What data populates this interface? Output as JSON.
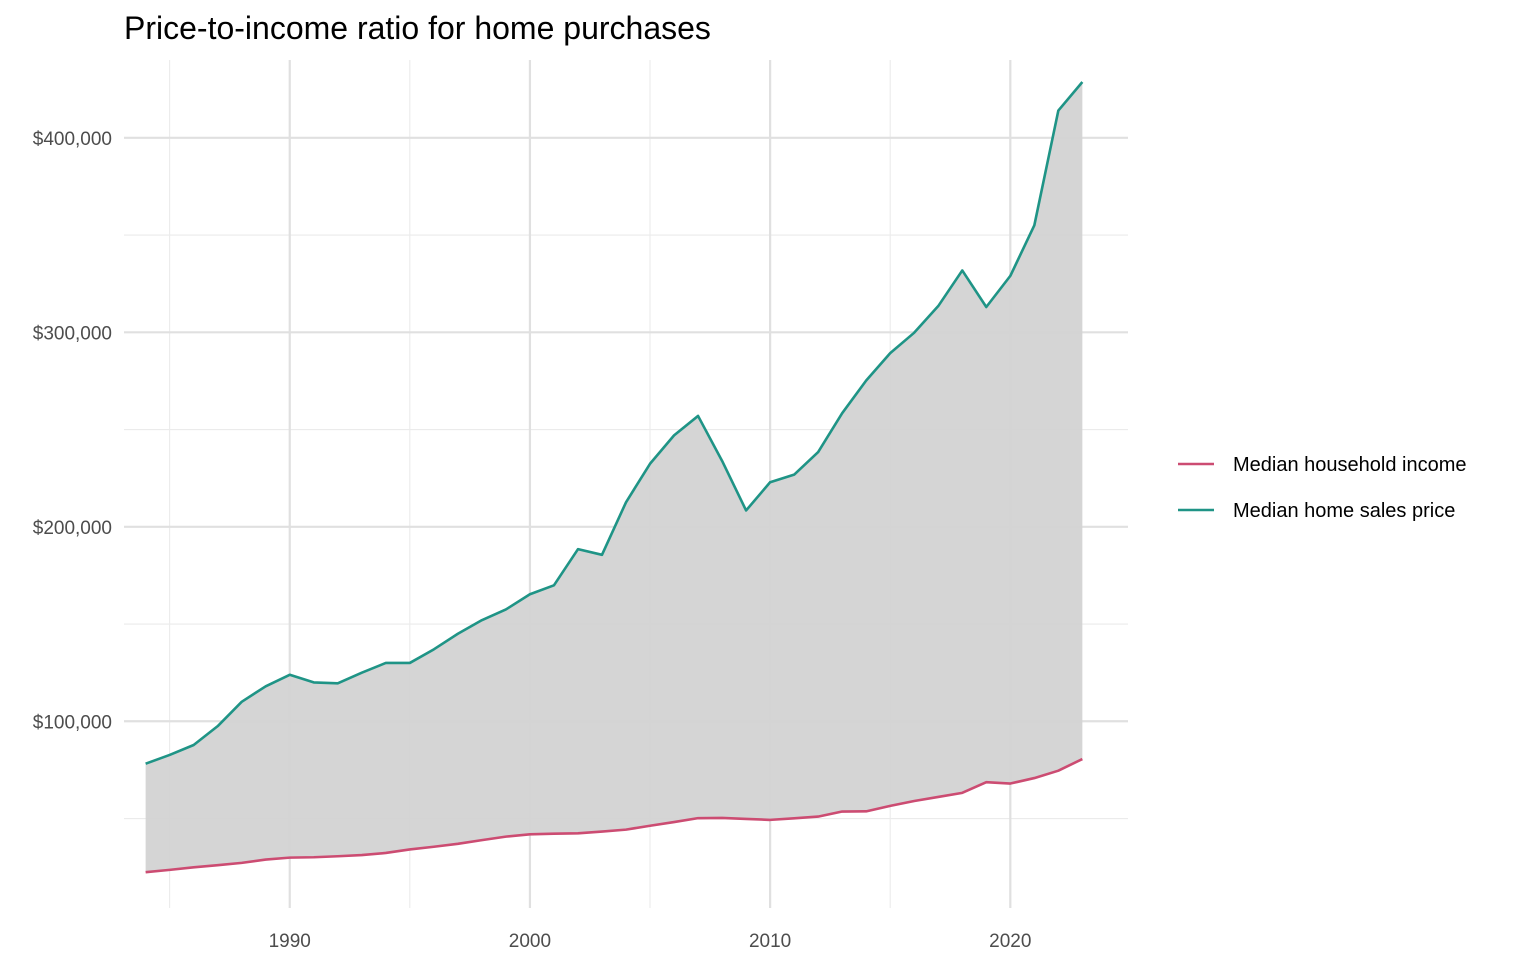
{
  "chart_data": {
    "type": "line",
    "title": "Price-to-income ratio for home purchases",
    "xlabel": "",
    "ylabel": "",
    "x_ticks": [
      1990,
      2000,
      2010,
      2020
    ],
    "y_ticks": [
      "$100,000",
      "$200,000",
      "$300,000",
      "$400,000"
    ],
    "y_tick_values": [
      100000,
      200000,
      300000,
      400000
    ],
    "xlim": [
      1983.1,
      2024.9
    ],
    "ylim": [
      4000,
      440000
    ],
    "grid": true,
    "legend_position": "right",
    "ribbon_between_series": true,
    "ribbon_color": "#d3d3d3",
    "x": [
      1984,
      1985,
      1986,
      1987,
      1988,
      1989,
      1990,
      1991,
      1992,
      1993,
      1994,
      1995,
      1996,
      1997,
      1998,
      1999,
      2000,
      2001,
      2002,
      2003,
      2004,
      2005,
      2006,
      2007,
      2008,
      2009,
      2010,
      2011,
      2012,
      2013,
      2014,
      2015,
      2016,
      2017,
      2018,
      2019,
      2020,
      2021,
      2022,
      2023
    ],
    "series": [
      {
        "name": "Median household income",
        "color": "#cc4c72",
        "values": [
          22400,
          23600,
          24900,
          26000,
          27200,
          28900,
          29900,
          30100,
          30600,
          31200,
          32300,
          34100,
          35500,
          37000,
          38900,
          40700,
          41900,
          42200,
          42400,
          43300,
          44300,
          46300,
          48200,
          50200,
          50300,
          49800,
          49300,
          50100,
          51000,
          53600,
          53700,
          56500,
          59000,
          61100,
          63200,
          68700,
          68000,
          70800,
          74600,
          80600
        ]
      },
      {
        "name": "Median home sales price",
        "color": "#1f9486",
        "values": [
          78200,
          82700,
          87800,
          97500,
          110000,
          118000,
          123900,
          120000,
          119500,
          125000,
          130000,
          130000,
          137000,
          145000,
          152000,
          157500,
          165300,
          169900,
          188500,
          185600,
          212600,
          232400,
          247000,
          257000,
          233900,
          208400,
          222900,
          226800,
          238400,
          258400,
          275200,
          289300,
          299800,
          313500,
          331800,
          313000,
          329000,
          355000,
          414000,
          428700
        ]
      }
    ]
  }
}
